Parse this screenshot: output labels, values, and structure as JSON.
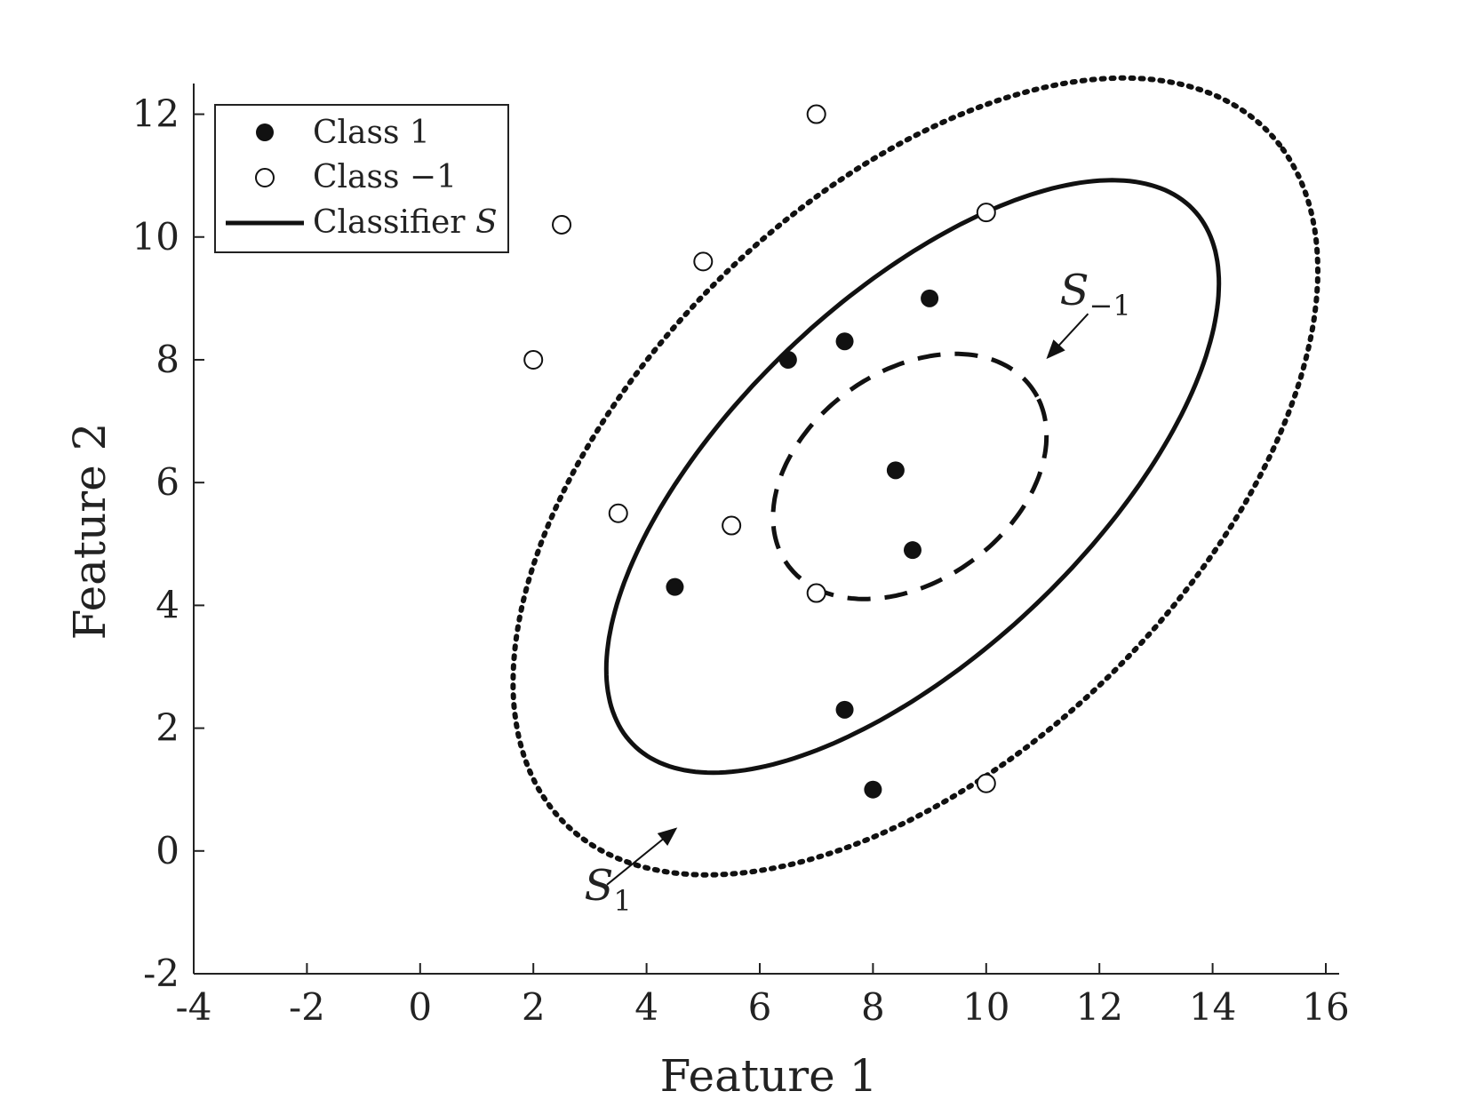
{
  "chart_data": {
    "type": "scatter",
    "title": "",
    "xlabel": "Feature 1",
    "ylabel": "Feature 2",
    "xlim": [
      -4,
      16
    ],
    "ylim": [
      -2,
      12.5
    ],
    "xticks": [
      -4,
      -2,
      0,
      2,
      4,
      6,
      8,
      10,
      12,
      14,
      16
    ],
    "yticks": [
      -2,
      0,
      2,
      4,
      6,
      8,
      10,
      12
    ],
    "xtick_labels": [
      "-4",
      "-2",
      "0",
      "2",
      "4",
      "6",
      "8",
      "10",
      "12",
      "14",
      "16"
    ],
    "ytick_labels": [
      "-2",
      "0",
      "2",
      "4",
      "6",
      "8",
      "10",
      "12"
    ],
    "grid": false,
    "legend_position": "top-left",
    "legend": {
      "class1": "Class 1",
      "class_neg1": "Class −1",
      "classifier_prefix": "Classifier ",
      "classifier_symbol": "S"
    },
    "series": [
      {
        "name": "Class 1",
        "marker": "filled-circle",
        "points": [
          [
            9.0,
            9.0
          ],
          [
            7.5,
            8.3
          ],
          [
            6.5,
            8.0
          ],
          [
            8.4,
            6.2
          ],
          [
            8.7,
            4.9
          ],
          [
            4.5,
            4.3
          ],
          [
            7.5,
            2.3
          ],
          [
            8.0,
            1.0
          ]
        ]
      },
      {
        "name": "Class −1",
        "marker": "open-circle",
        "points": [
          [
            7.0,
            12.0
          ],
          [
            2.5,
            10.2
          ],
          [
            10.0,
            10.4
          ],
          [
            5.0,
            9.6
          ],
          [
            2.0,
            8.0
          ],
          [
            3.5,
            5.5
          ],
          [
            5.5,
            5.3
          ],
          [
            7.0,
            4.2
          ],
          [
            10.0,
            1.1
          ]
        ]
      }
    ],
    "curves": [
      {
        "name": "Classifier S",
        "style": "solid",
        "center": [
          8.7,
          6.1
        ],
        "semi_axes": [
          6.6,
          3.0
        ],
        "rotation_deg": 40
      },
      {
        "name": "S1",
        "style": "dotted",
        "center": [
          8.75,
          6.1
        ],
        "semi_axes": [
          8.4,
          4.7
        ],
        "rotation_deg": 40
      },
      {
        "name": "S-1",
        "style": "dashed",
        "center": [
          8.65,
          6.1
        ],
        "semi_axes": [
          2.6,
          1.75
        ],
        "rotation_deg": 30
      }
    ],
    "annotations": [
      {
        "id": "s1",
        "main": "S",
        "sub": "1",
        "text_at": [
          2.9,
          -0.8
        ],
        "arrow_from": [
          3.3,
          -0.55
        ],
        "arrow_to": [
          4.5,
          0.35
        ]
      },
      {
        "id": "sneg1",
        "main": "S",
        "sub": "−1",
        "text_at": [
          11.3,
          8.9
        ],
        "arrow_from": [
          11.8,
          8.75
        ],
        "arrow_to": [
          11.1,
          8.05
        ]
      }
    ]
  }
}
